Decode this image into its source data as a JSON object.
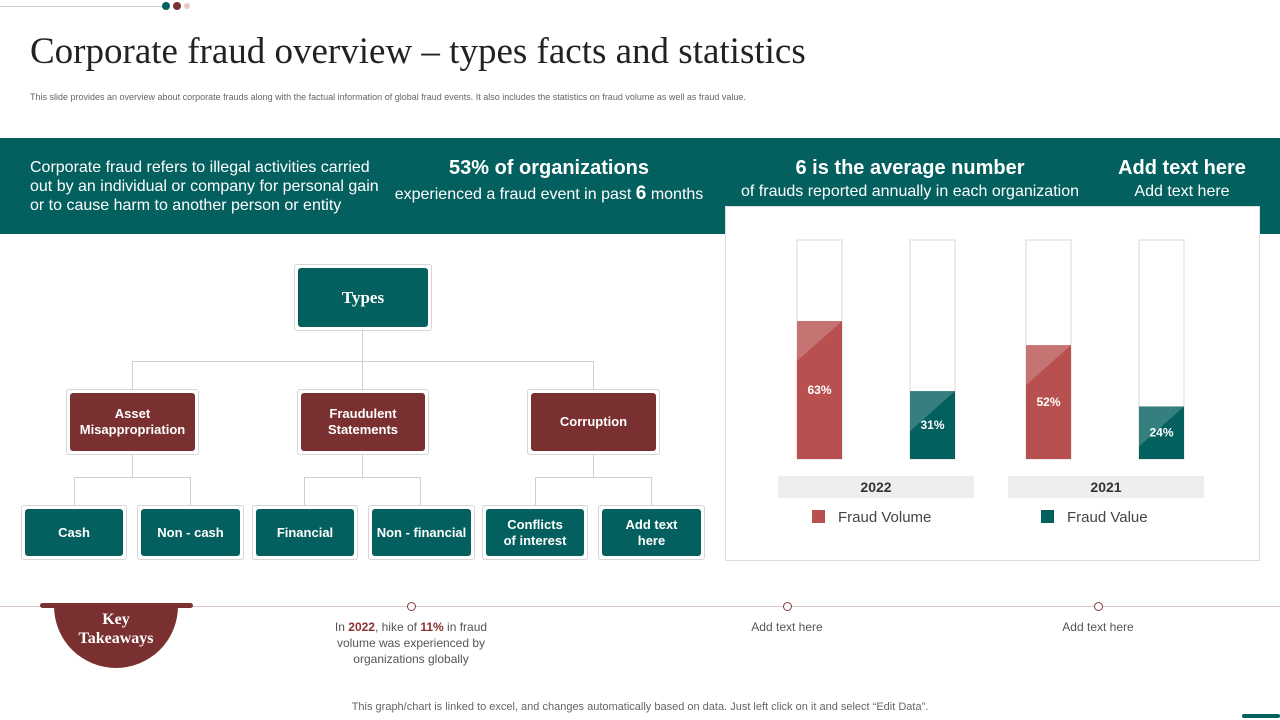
{
  "header": {
    "title": "Corporate fraud overview – types facts and statistics",
    "subtitle": "This slide provides an overview about corporate frauds along with the factual information of global fraud events. It also includes the statistics on fraud volume as well as fraud value."
  },
  "band": {
    "description": "Corporate fraud refers to illegal activities carried out by an individual or company for personal gain or to cause harm to another person or entity",
    "stat1": {
      "heading": "53% of organizations",
      "text_before": "experienced a fraud event in past",
      "highlight": "6",
      "text_after": "months"
    },
    "stat2": {
      "heading": "6 is the average number",
      "text": "of frauds reported annually in each organization"
    },
    "stat3": {
      "heading": "Add text here",
      "text": "Add text here"
    }
  },
  "types": {
    "root": "Types",
    "categories": [
      "Asset Misappropriation",
      "Fraudulent Statements",
      "Corruption"
    ],
    "leaves": [
      "Cash",
      "Non - cash",
      "Financial",
      "Non - financial",
      "Conflicts of interest",
      "Add text here"
    ]
  },
  "chart_data": {
    "type": "bar",
    "categories": [
      "2022",
      "2021"
    ],
    "series": [
      {
        "name": "Fraud Volume",
        "values": [
          63,
          52
        ],
        "color": "#b85050"
      },
      {
        "name": "Fraud Value",
        "values": [
          31,
          24
        ],
        "color": "#04605f"
      }
    ],
    "ylim": [
      0,
      100
    ],
    "value_suffix": "%"
  },
  "takeaways": {
    "label": "Key Takeaways",
    "item1": {
      "p1": "In",
      "year": "2022",
      "p2": ", hike of",
      "pct": "11%",
      "p3": "in fraud volume was experienced by organizations globally"
    },
    "item2": "Add text here",
    "item3": "Add text here"
  },
  "footer": "This graph/chart is linked to excel, and changes automatically based on data. Just left click on it and select “Edit Data”.",
  "colors": {
    "teal": "#04605f",
    "maroon": "#7a3030"
  }
}
